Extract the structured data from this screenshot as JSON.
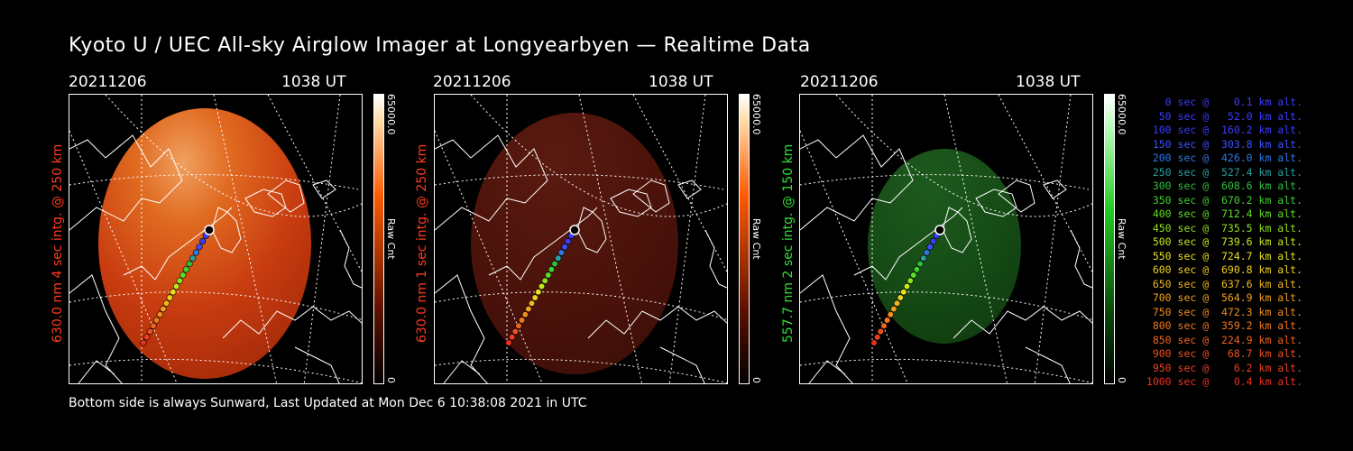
{
  "title": "Kyoto U / UEC All-sky Airglow Imager at Longyearbyen — Realtime Data",
  "footer": "Bottom side is always Sunward, Last Updated at Mon Dec  6 10:38:08 2021 in UTC",
  "panels": [
    {
      "date": "20211206",
      "time": "1038 UT",
      "ylabel": "630.0 nm 4 sec intg. @ 250 km",
      "label_color": "#ff3c1e",
      "glow": "bright_red",
      "cbar_color": "#ff5a00",
      "cbar_max": "65000.0",
      "cbar_min": "0",
      "cbar_unit": "Raw Cnt"
    },
    {
      "date": "20211206",
      "time": "1038 UT",
      "ylabel": "630.0 nm 1 sec intg. @ 250 km",
      "label_color": "#ff3c1e",
      "glow": "dim_red",
      "cbar_color": "#ff5a00",
      "cbar_max": "65000.0",
      "cbar_min": "0",
      "cbar_unit": "Raw Cnt"
    },
    {
      "date": "20211206",
      "time": "1038 UT",
      "ylabel": "557.7 nm 2 sec intg. @ 150 km",
      "label_color": "#33dd33",
      "glow": "green",
      "cbar_color": "#22cc22",
      "cbar_max": "65000.0",
      "cbar_min": "0",
      "cbar_unit": "Raw Cnt"
    }
  ],
  "legend": [
    {
      "text": "   0 sec @    0.1 km alt.",
      "color": "#3c3cff"
    },
    {
      "text": "  50 sec @   52.0 km alt.",
      "color": "#3c3cff"
    },
    {
      "text": " 100 sec @  160.2 km alt.",
      "color": "#3c3cff"
    },
    {
      "text": " 150 sec @  303.8 km alt.",
      "color": "#3c50ff"
    },
    {
      "text": " 200 sec @  426.0 km alt.",
      "color": "#2f78e6"
    },
    {
      "text": " 250 sec @  527.4 km alt.",
      "color": "#2aa0a0"
    },
    {
      "text": " 300 sec @  608.6 km alt.",
      "color": "#30c040"
    },
    {
      "text": " 350 sec @  670.2 km alt.",
      "color": "#40d030"
    },
    {
      "text": " 400 sec @  712.4 km alt.",
      "color": "#60dc28"
    },
    {
      "text": " 450 sec @  735.5 km alt.",
      "color": "#90e020"
    },
    {
      "text": " 500 sec @  739.6 km alt.",
      "color": "#c8e620"
    },
    {
      "text": " 550 sec @  724.7 km alt.",
      "color": "#e6e020"
    },
    {
      "text": " 600 sec @  690.8 km alt.",
      "color": "#f0d020"
    },
    {
      "text": " 650 sec @  637.6 km alt.",
      "color": "#f0b820"
    },
    {
      "text": " 700 sec @  564.9 km alt.",
      "color": "#f0a020"
    },
    {
      "text": " 750 sec @  472.3 km alt.",
      "color": "#f08c20"
    },
    {
      "text": " 800 sec @  359.2 km alt.",
      "color": "#f07820"
    },
    {
      "text": " 850 sec @  224.9 km alt.",
      "color": "#f06420"
    },
    {
      "text": " 900 sec @   68.7 km alt.",
      "color": "#ee5020"
    },
    {
      "text": " 950 sec @    6.2 km alt.",
      "color": "#ec4020"
    },
    {
      "text": "1000 sec @    0.4 km alt.",
      "color": "#ea3020"
    }
  ],
  "chart_data": {
    "type": "scatter",
    "title": "Kyoto U / UEC All-sky Airglow Imager at Longyearbyen — Realtime Data",
    "series": [
      {
        "x": [
          0,
          50,
          100,
          150,
          200,
          250,
          300,
          350,
          400,
          450,
          500,
          550,
          600,
          650,
          700,
          750,
          800,
          850,
          900,
          950,
          1000
        ],
        "y": [
          0.1,
          52.0,
          160.2,
          303.8,
          426.0,
          527.4,
          608.6,
          670.2,
          712.4,
          735.5,
          739.6,
          724.7,
          690.8,
          637.6,
          564.9,
          472.3,
          359.2,
          224.9,
          68.7,
          6.2,
          0.4
        ]
      }
    ],
    "xlabel": "sec",
    "ylabel": "km alt."
  }
}
